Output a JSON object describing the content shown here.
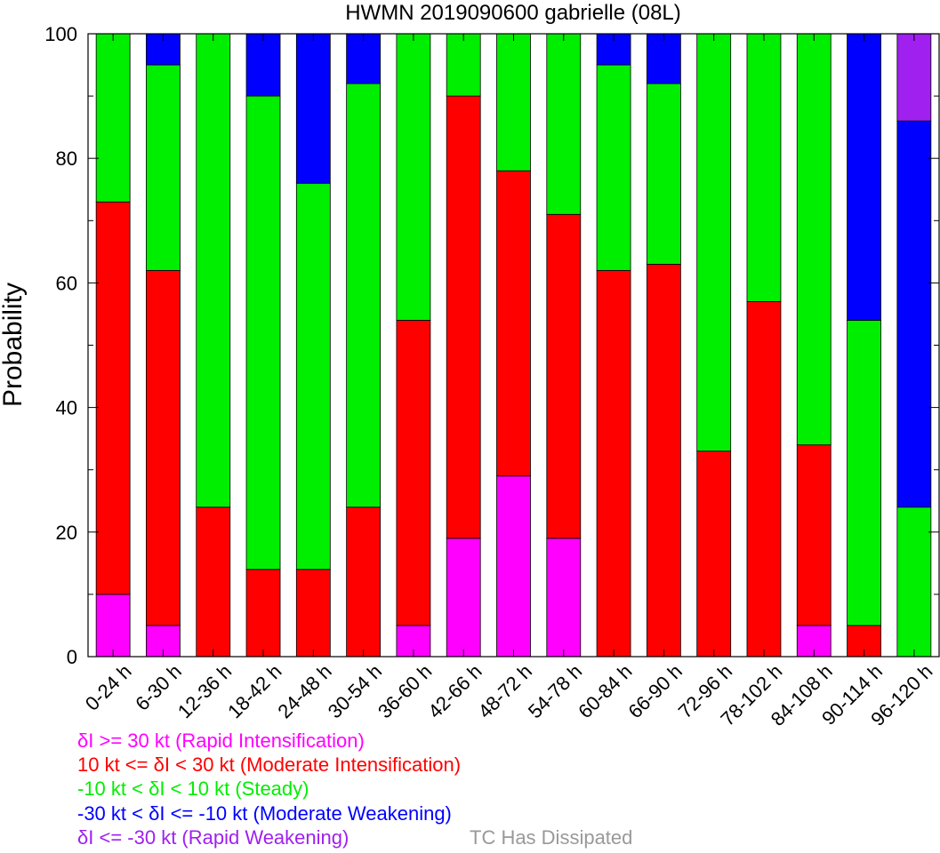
{
  "chart_data": {
    "type": "bar",
    "stacked": true,
    "title": "HWMN 2019090600 gabrielle (08L)",
    "ylabel": "Probability",
    "xlabel": "",
    "ylim": [
      0,
      100
    ],
    "yticks": [
      0,
      20,
      40,
      60,
      80,
      100
    ],
    "grid": false,
    "legend_position": "bottom-left",
    "categories": [
      "0-24 h",
      "6-30 h",
      "12-36 h",
      "18-42 h",
      "24-48 h",
      "30-54 h",
      "36-60 h",
      "42-66 h",
      "48-72 h",
      "54-78 h",
      "60-84 h",
      "66-90 h",
      "72-96 h",
      "78-102 h",
      "84-108 h",
      "90-114 h",
      "96-120 h"
    ],
    "series": [
      {
        "name": "Rapid Intensification",
        "color": "#ff00ff",
        "values": [
          10,
          5,
          0,
          0,
          0,
          0,
          5,
          19,
          29,
          19,
          0,
          0,
          0,
          0,
          5,
          0,
          0
        ]
      },
      {
        "name": "Moderate Intensification",
        "color": "#ff0000",
        "values": [
          63,
          57,
          24,
          14,
          14,
          24,
          49,
          71,
          49,
          52,
          62,
          63,
          33,
          57,
          29,
          5,
          0
        ]
      },
      {
        "name": "Steady",
        "color": "#00ee00",
        "values": [
          27,
          33,
          76,
          76,
          62,
          68,
          46,
          10,
          22,
          29,
          33,
          29,
          67,
          43,
          66,
          49,
          24
        ]
      },
      {
        "name": "Moderate Weakening",
        "color": "#0000ff",
        "values": [
          0,
          5,
          0,
          10,
          24,
          8,
          0,
          0,
          0,
          0,
          5,
          8,
          0,
          0,
          0,
          46,
          62
        ]
      },
      {
        "name": "Rapid Weakening",
        "color": "#a020f0",
        "values": [
          0,
          0,
          0,
          0,
          0,
          0,
          0,
          0,
          0,
          0,
          0,
          0,
          0,
          0,
          0,
          0,
          14
        ]
      }
    ]
  },
  "legend": [
    {
      "text": "δI >= 30 kt (Rapid Intensification)",
      "color": "#ff00ff"
    },
    {
      "text": "10 kt <= δI < 30 kt (Moderate Intensification)",
      "color": "#ff0000"
    },
    {
      "text": "-10 kt < δI < 10 kt (Steady)",
      "color": "#00ee00"
    },
    {
      "text": "-30 kt < δI <= -10 kt (Moderate Weakening)",
      "color": "#0000ff"
    },
    {
      "text": "δI <= -30 kt (Rapid Weakening)",
      "color": "#a020f0"
    }
  ],
  "dissipated_label": {
    "text": "TC Has Dissipated",
    "color": "#999999"
  }
}
